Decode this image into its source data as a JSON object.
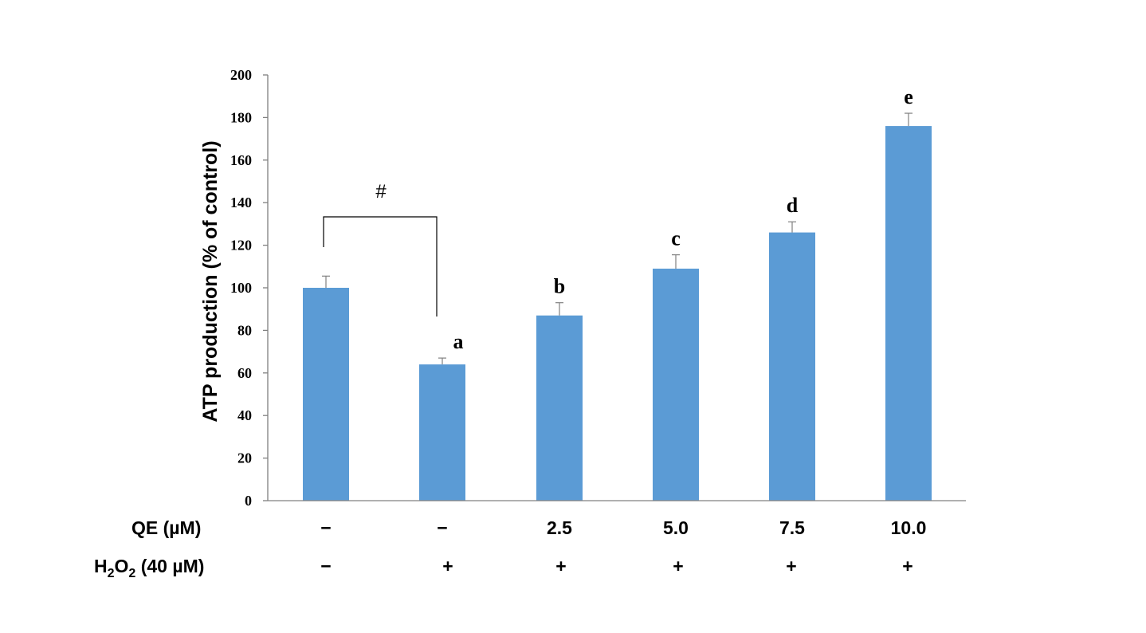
{
  "chart_data": {
    "type": "bar",
    "ylabel": "ATP production (% of control)",
    "ylim": [
      0,
      200
    ],
    "yticks": [
      "0",
      "20",
      "40",
      "60",
      "80",
      "100",
      "120",
      "140",
      "160",
      "180",
      "200"
    ],
    "values": [
      100,
      64,
      87,
      109,
      126,
      176
    ],
    "errors": [
      5.5,
      3,
      6,
      6.5,
      5,
      6
    ],
    "significance_letters": [
      "",
      "a",
      "b",
      "c",
      "d",
      "e"
    ],
    "bracket_label": "#",
    "bar_color": "#5B9BD5",
    "grid": false,
    "treatment_rows": [
      {
        "label": "QE (µM)",
        "values": [
          "−",
          "−",
          "2.5",
          "5.0",
          "7.5",
          "10.0"
        ]
      },
      {
        "label_main": "H",
        "label_sub1": "2",
        "label_mid": "O",
        "label_sub2": "2",
        "label_rest": " (40 µM)",
        "values": [
          "−",
          "+",
          "+",
          "+",
          "+",
          "+"
        ]
      }
    ]
  }
}
